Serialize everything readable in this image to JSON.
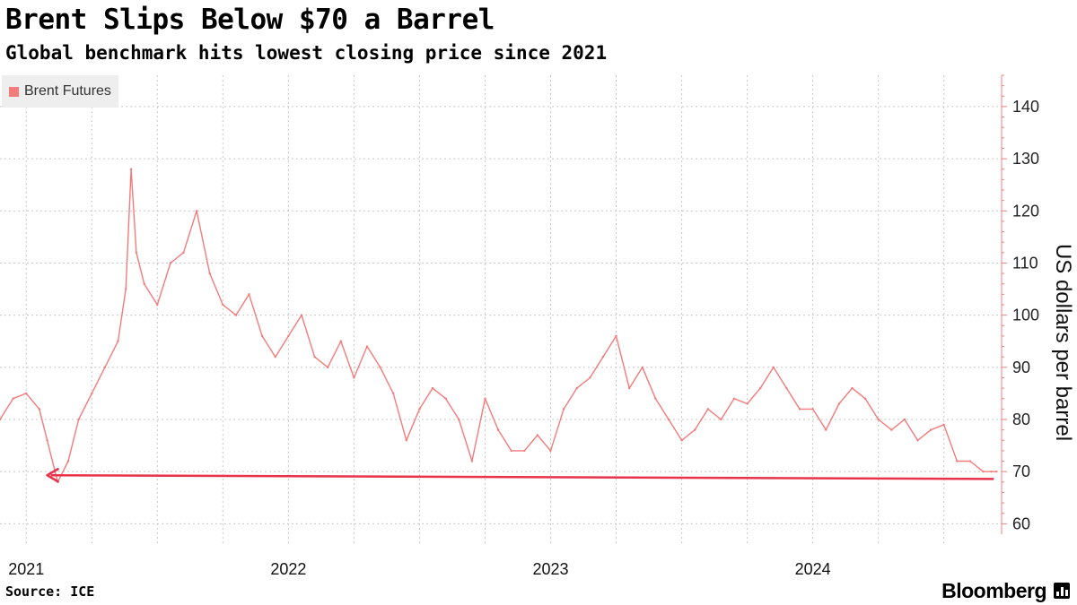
{
  "chart_data": {
    "type": "line",
    "title": "Brent Slips Below $70 a Barrel",
    "subtitle": "Global benchmark hits lowest closing price since 2021",
    "ylabel": "US dollars per barrel",
    "xlabel": "",
    "ylim": [
      58,
      146
    ],
    "yticks": [
      60,
      70,
      80,
      90,
      100,
      110,
      120,
      130,
      140
    ],
    "xlim": [
      2020.9,
      2024.72
    ],
    "xticks": [
      {
        "label": "2021",
        "x": 2021.0
      },
      {
        "label": "2022",
        "x": 2022.0
      },
      {
        "label": "2023",
        "x": 2023.0
      },
      {
        "label": "2024",
        "x": 2024.0
      }
    ],
    "grid": true,
    "legend_position": "top-left",
    "series": [
      {
        "name": "Brent Futures",
        "color": "#f47b7b",
        "x": [
          2020.9,
          2020.95,
          2021.0,
          2021.05,
          2021.08,
          2021.12,
          2021.16,
          2021.2,
          2021.25,
          2021.3,
          2021.35,
          2021.38,
          2021.4,
          2021.42,
          2021.45,
          2021.5,
          2021.55,
          2021.6,
          2021.65,
          2021.7,
          2021.75,
          2021.8,
          2021.85,
          2021.9,
          2021.95,
          2022.0,
          2022.05,
          2022.1,
          2022.15,
          2022.2,
          2022.25,
          2022.3,
          2022.35,
          2022.4,
          2022.45,
          2022.5,
          2022.55,
          2022.6,
          2022.65,
          2022.7,
          2022.75,
          2022.8,
          2022.85,
          2022.9,
          2022.95,
          2023.0,
          2023.05,
          2023.1,
          2023.15,
          2023.2,
          2023.25,
          2023.3,
          2023.35,
          2023.4,
          2023.45,
          2023.5,
          2023.55,
          2023.6,
          2023.65,
          2023.7,
          2023.75,
          2023.8,
          2023.85,
          2023.9,
          2023.95,
          2024.0,
          2024.05,
          2024.1,
          2024.15,
          2024.2,
          2024.25,
          2024.3,
          2024.35,
          2024.4,
          2024.45,
          2024.5,
          2024.55,
          2024.6,
          2024.65,
          2024.68,
          2024.7
        ],
        "values": [
          80,
          84,
          85,
          82,
          76,
          68,
          72,
          80,
          85,
          90,
          95,
          105,
          128,
          112,
          106,
          102,
          110,
          112,
          120,
          108,
          102,
          100,
          104,
          96,
          92,
          96,
          100,
          92,
          90,
          95,
          88,
          94,
          90,
          85,
          76,
          82,
          86,
          84,
          80,
          72,
          84,
          78,
          74,
          74,
          77,
          74,
          82,
          86,
          88,
          92,
          96,
          86,
          90,
          84,
          80,
          76,
          78,
          82,
          80,
          84,
          83,
          86,
          90,
          86,
          82,
          82,
          78,
          83,
          86,
          84,
          80,
          78,
          80,
          76,
          78,
          79,
          72,
          72,
          70,
          70,
          70
        ]
      }
    ],
    "annotations": [
      {
        "type": "arrow",
        "from": {
          "x": 2024.69,
          "y": 68.6
        },
        "to": {
          "x": 2021.08,
          "y": 69.3
        },
        "color": "#e8334a"
      }
    ]
  },
  "legend": {
    "label": "Brent Futures",
    "color": "#f47b7b"
  },
  "footer": {
    "source": "Source: ICE",
    "brand": "Bloomberg"
  }
}
